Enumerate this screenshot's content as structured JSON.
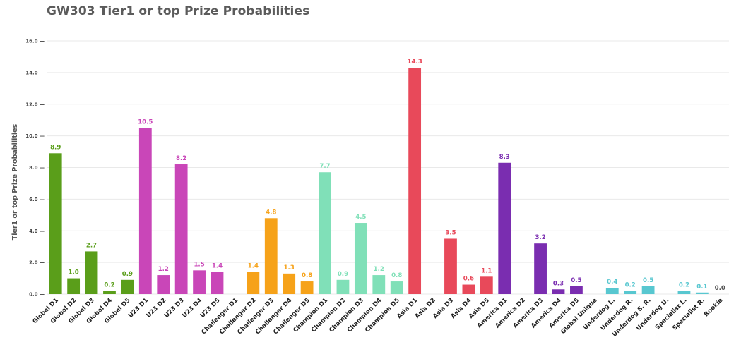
{
  "chart_data": {
    "type": "bar",
    "title": "GW303 Tier1 or top Prize Probabilities",
    "ylabel": "Tier1 or top Prize Probabilities",
    "xlabel": "",
    "ylim": [
      0,
      16
    ],
    "yticks": [
      "0.0",
      "2.0",
      "4.0",
      "6.0",
      "8.0",
      "10.0",
      "12.0",
      "14.0",
      "16.0"
    ],
    "grid": true,
    "categories": [
      "Global D1",
      "Global D2",
      "Global D3",
      "Global D4",
      "Global D5",
      "U23 D1",
      "U23 D2",
      "U23 D3",
      "U23 D4",
      "U23 D5",
      "Challenger D1",
      "Challenger D2",
      "Challenger D3",
      "Challenger D4",
      "Challenger D5",
      "Champion D1",
      "Champion D2",
      "Champion D3",
      "Champion D4",
      "Champion D5",
      "Asia D1",
      "Asia D2",
      "Asia D3",
      "Asia D4",
      "Asia D5",
      "America D1",
      "America D2",
      "America D3",
      "America D4",
      "America D5",
      "Global Unique",
      "Underdog L.",
      "Underdog R.",
      "Underdog S. R.",
      "Underdog U.",
      "Specialist L.",
      "Specialist R.",
      "Rookie"
    ],
    "values": [
      8.9,
      1.0,
      2.7,
      0.2,
      0.9,
      10.5,
      1.2,
      8.2,
      1.5,
      1.4,
      null,
      1.4,
      4.8,
      1.3,
      0.8,
      7.7,
      0.9,
      4.5,
      1.2,
      0.8,
      14.3,
      null,
      3.5,
      0.6,
      1.1,
      8.3,
      null,
      3.2,
      0.3,
      0.5,
      null,
      0.4,
      0.2,
      0.5,
      null,
      0.2,
      0.1,
      0.0
    ],
    "value_labels": [
      "8.9",
      "1.0",
      "2.7",
      "0.2",
      "0.9",
      "10.5",
      "1.2",
      "8.2",
      "1.5",
      "1.4",
      "",
      "1.4",
      "4.8",
      "1.3",
      "0.8",
      "7.7",
      "0.9",
      "4.5",
      "1.2",
      "0.8",
      "14.3",
      "",
      "3.5",
      "0.6",
      "1.1",
      "8.3",
      "",
      "3.2",
      "0.3",
      "0.5",
      "",
      "0.4",
      "0.2",
      "0.5",
      "",
      "0.2",
      "0.1",
      "0.0"
    ],
    "colors": [
      "#5a9e1a",
      "#5a9e1a",
      "#5a9e1a",
      "#5a9e1a",
      "#5a9e1a",
      "#c946b8",
      "#c946b8",
      "#c946b8",
      "#c946b8",
      "#c946b8",
      "#f6a219",
      "#f6a219",
      "#f6a219",
      "#f6a219",
      "#f6a219",
      "#80e0b8",
      "#80e0b8",
      "#80e0b8",
      "#80e0b8",
      "#80e0b8",
      "#e8495a",
      "#e8495a",
      "#e8495a",
      "#e8495a",
      "#e8495a",
      "#7a2db0",
      "#7a2db0",
      "#7a2db0",
      "#7a2db0",
      "#7a2db0",
      "#58c7d0",
      "#58c7d0",
      "#58c7d0",
      "#58c7d0",
      "#58c7d0",
      "#58c7d0",
      "#58c7d0",
      "#555555"
    ]
  }
}
